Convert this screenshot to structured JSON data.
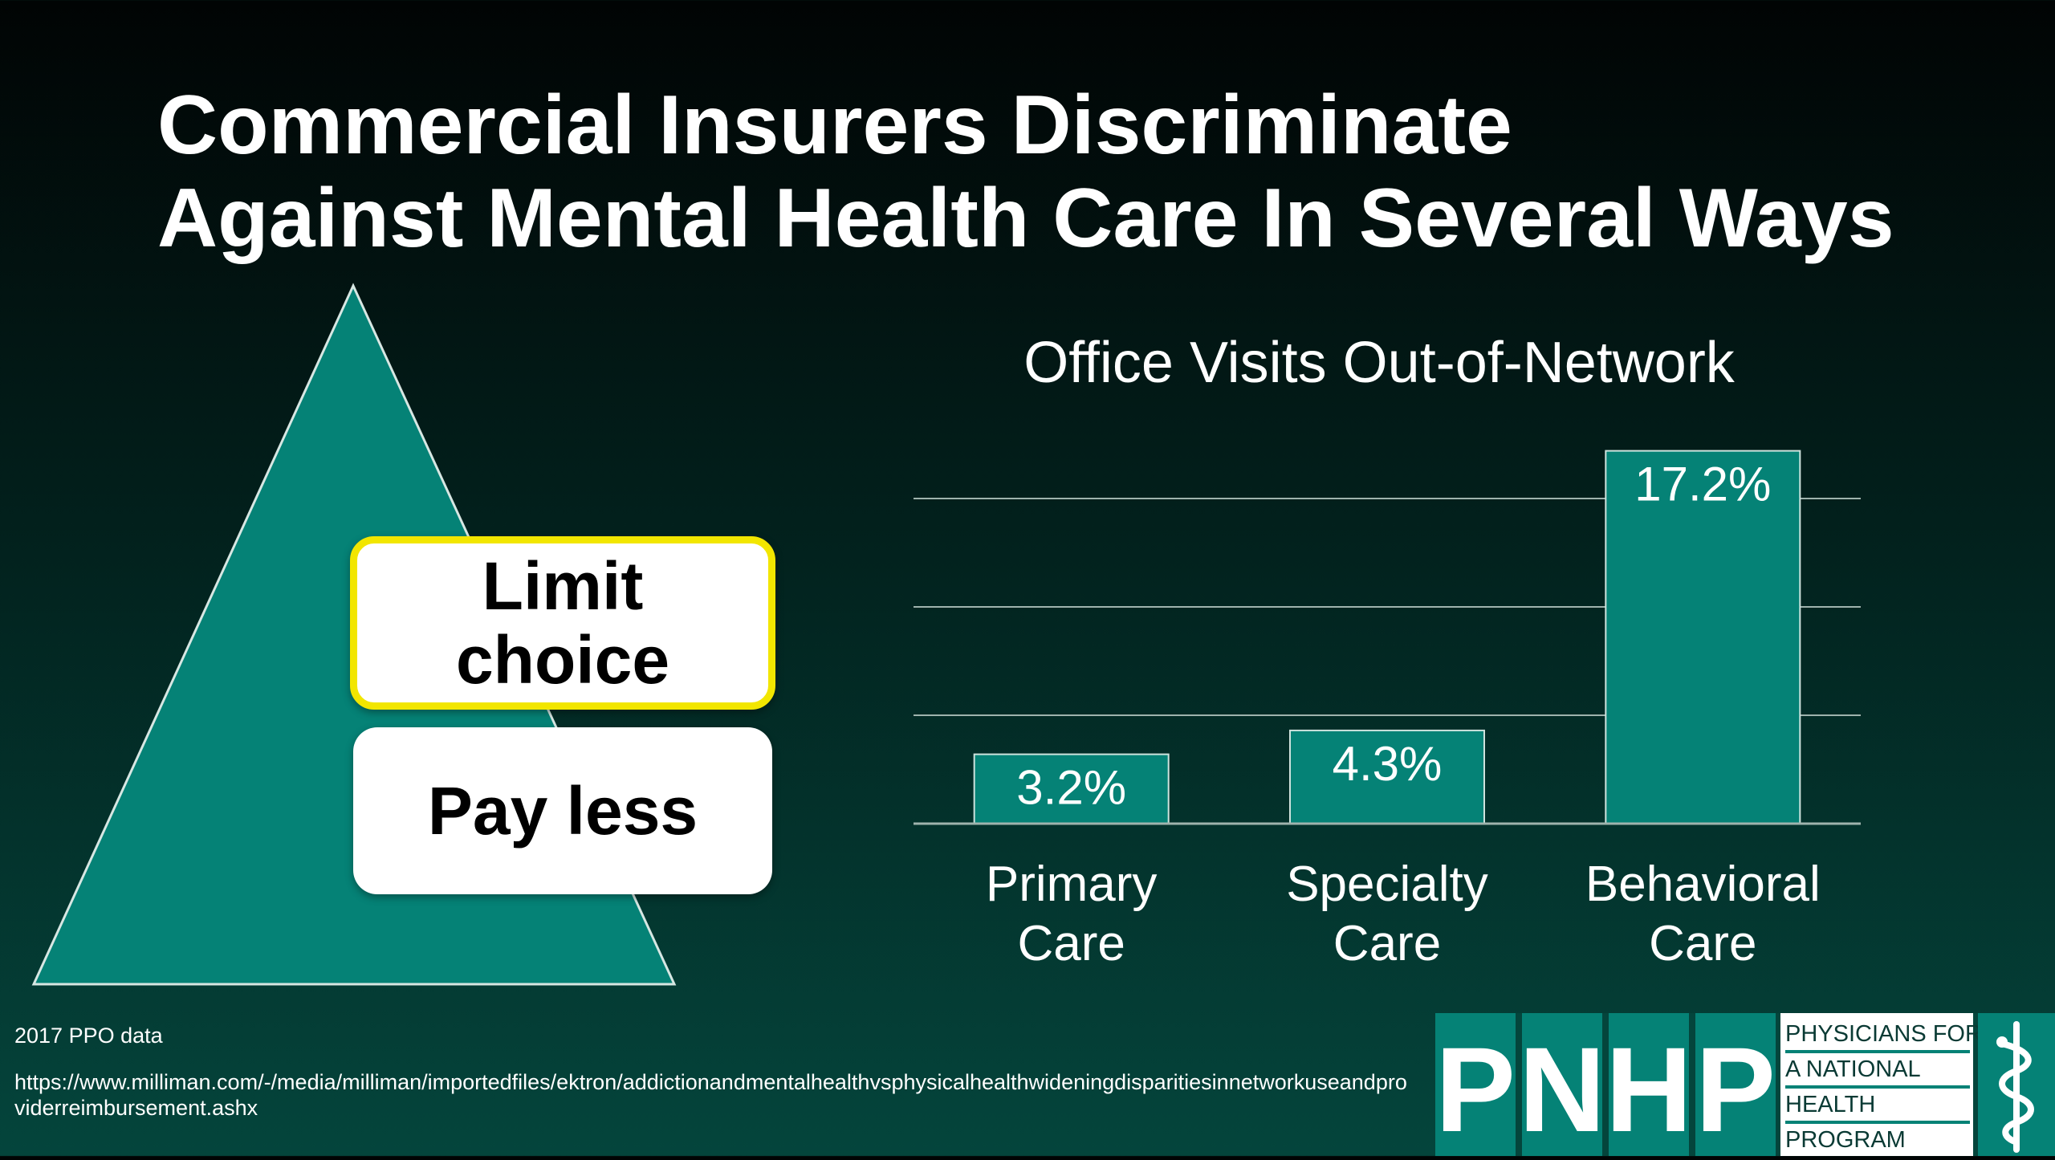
{
  "title": {
    "line1": "Commercial Insurers Discriminate",
    "line2": "Against Mental Health Care In Several Ways"
  },
  "pyramid": {
    "box_limit": {
      "line1": "Limit",
      "line2": "choice"
    },
    "box_pay": "Pay less"
  },
  "chart_data": {
    "type": "bar",
    "title": "Office Visits Out-of-Network",
    "categories": [
      "Primary Care",
      "Specialty Care",
      "Behavioral Care"
    ],
    "category_lines": [
      [
        "Primary",
        "Care"
      ],
      [
        "Specialty",
        "Care"
      ],
      [
        "Behavioral",
        "Care"
      ]
    ],
    "values": [
      3.2,
      4.3,
      17.2
    ],
    "value_labels": [
      "3.2%",
      "4.3%",
      "17.2%"
    ],
    "ylim": [
      0,
      18
    ],
    "gridlines": [
      5,
      10,
      15
    ],
    "grid": true,
    "xlabel": "",
    "ylabel": ""
  },
  "footnote": {
    "year": "2017 PPO data",
    "url": "https://www.milliman.com/-/media/milliman/importedfiles/ektron/addictionandmentalhealthvsphysicalhealthwideningdisparitiesinnetworkuseandproviderreimbursement.ashx"
  },
  "logo": {
    "letters": [
      "P",
      "N",
      "H",
      "P"
    ],
    "text_lines": [
      "PHYSICIANS FOR",
      "A NATIONAL",
      "HEALTH",
      "PROGRAM"
    ],
    "emblem_icon": "caduceus-icon"
  },
  "colors": {
    "teal": "#058276",
    "highlight_border": "#f2e600",
    "gridline": "#9fb3ad"
  }
}
